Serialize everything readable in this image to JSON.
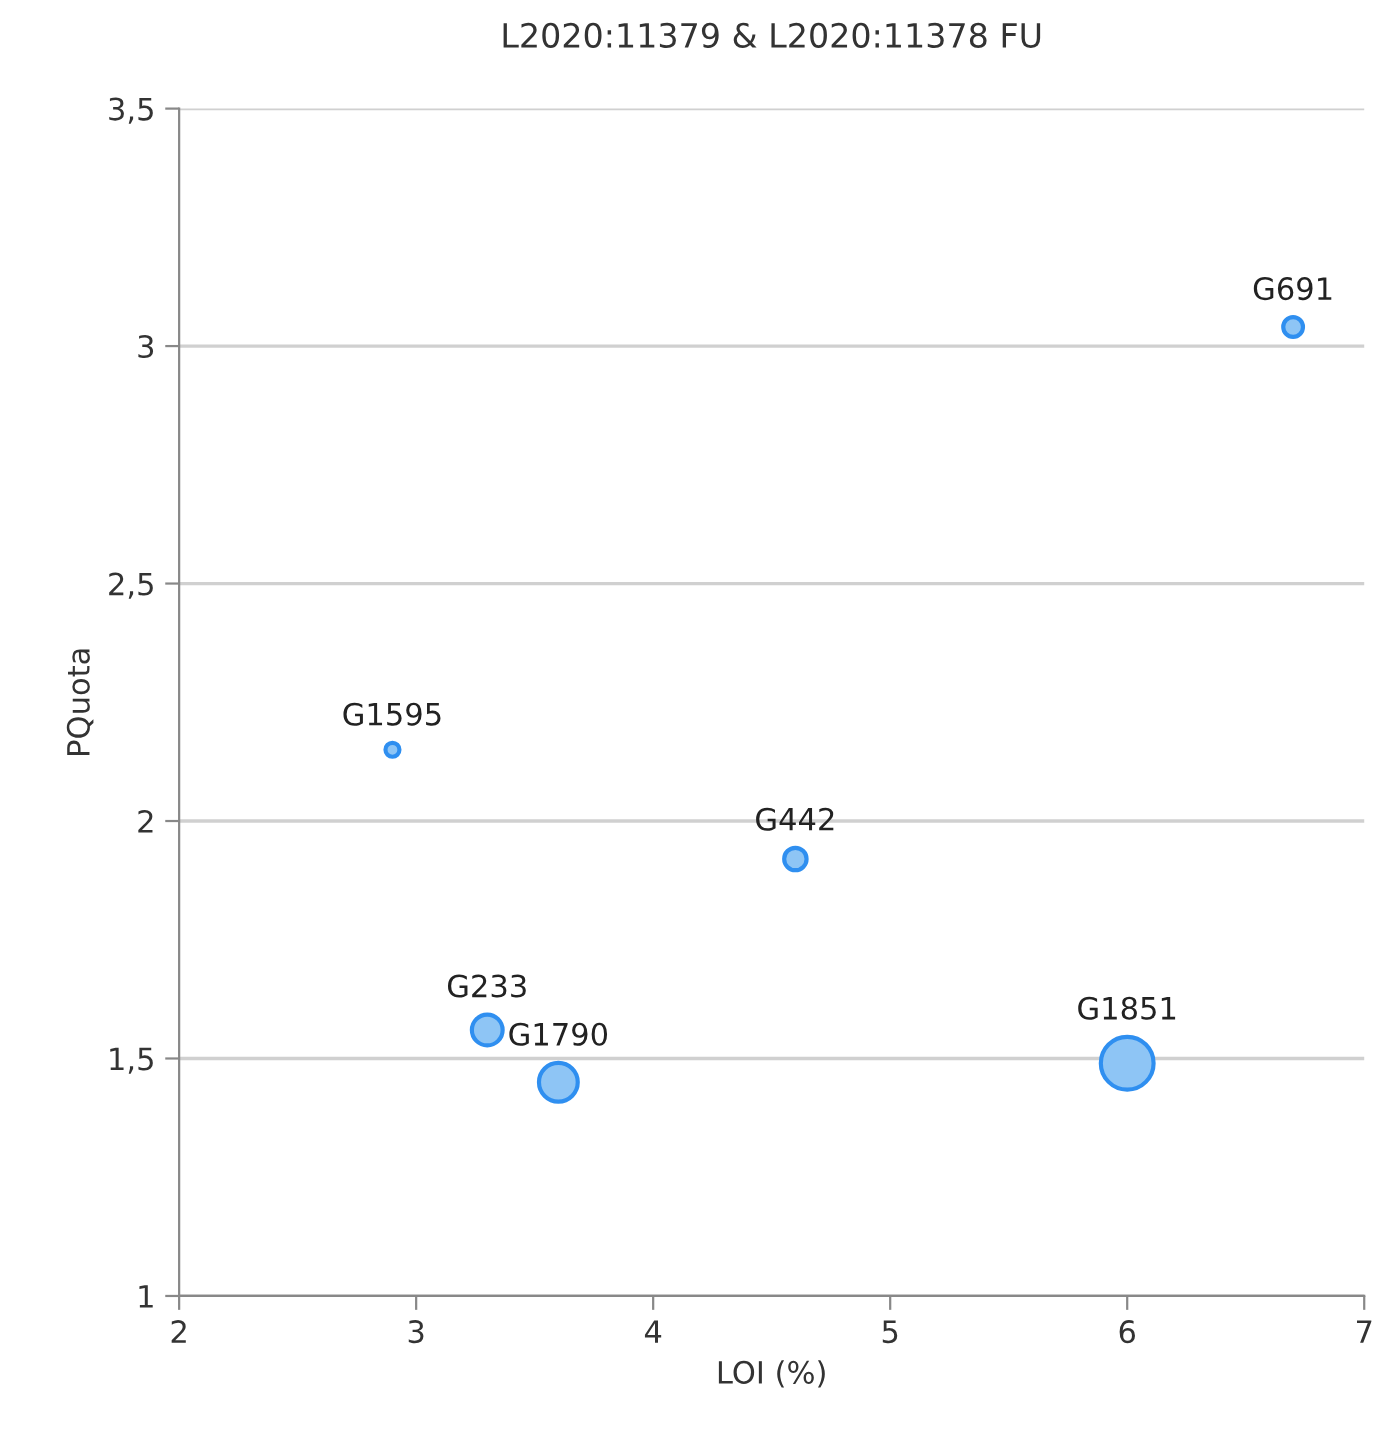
{
  "chart_data": {
    "type": "bubble",
    "title": "L2020:11379 & L2020:11378 FU",
    "xlabel": "LOI (%)",
    "ylabel": "PQuota",
    "x": [
      2.9,
      3.3,
      3.6,
      4.6,
      6.0,
      6.7
    ],
    "values": [
      2.15,
      1.56,
      1.45,
      1.92,
      1.49,
      3.04
    ],
    "sizes": [
      0.07,
      0.34,
      0.54,
      0.18,
      1,
      0.14
    ],
    "color": "#8ec5f5",
    "annotations": [
      {
        "text": "G1595",
        "x": 2.9,
        "y": 2.15
      },
      {
        "text": "G233",
        "x": 3.3,
        "y": 1.56
      },
      {
        "text": "G1790",
        "x": 3.6,
        "y": 1.45
      },
      {
        "text": "G442",
        "x": 4.6,
        "y": 1.92
      },
      {
        "text": "G1851",
        "x": 6.0,
        "y": 1.49
      },
      {
        "text": "G691",
        "x": 6.7,
        "y": 3.04
      }
    ],
    "xlim": [
      2,
      7
    ],
    "xticks": [
      2,
      3,
      4,
      5,
      6,
      7
    ],
    "ylim": [
      1,
      3.5
    ],
    "yticks": [
      1,
      {
        "value": 1.5,
        "label": "1,5"
      },
      2,
      {
        "value": 2.5,
        "label": "2,5"
      },
      3,
      {
        "value": 3.5,
        "label": "3,5"
      }
    ],
    "grid": "y",
    "legend": false
  }
}
